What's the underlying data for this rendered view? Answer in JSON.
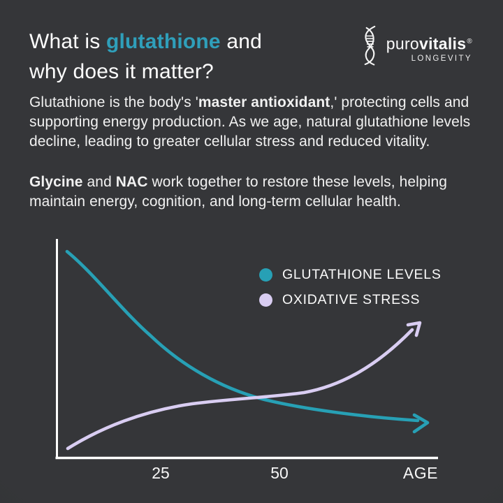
{
  "header": {
    "title_segments": [
      {
        "text": "What is "
      },
      {
        "text": "glutathione",
        "style": "accent"
      },
      {
        "text": " and"
      },
      {
        "br": true
      },
      {
        "text": "why does it matter?"
      }
    ],
    "logo": {
      "brand_light": "puro",
      "brand_bold": "vitalis",
      "registered": "®",
      "tagline": "LONGEVITY"
    }
  },
  "intro": {
    "p1_segments": [
      {
        "text": "Glutathione is the body's '"
      },
      {
        "text": "master antioxidant",
        "style": "bold"
      },
      {
        "text": ",' protecting cells and supporting energy production. As we age, natural glutathione levels decline, leading to greater cellular stress and reduced vitality."
      }
    ],
    "p2_segments": [
      {
        "text": "Glycine",
        "style": "bold"
      },
      {
        "text": " and "
      },
      {
        "text": "NAC",
        "style": "bold"
      },
      {
        "text": " work together to restore these levels, helping maintain energy, cognition, and long-term cellular health."
      }
    ]
  },
  "chart": {
    "legend": [
      {
        "label": "GLUTATHIONE LEVELS",
        "color": "#27a0b5"
      },
      {
        "label": "OXIDATIVE STRESS",
        "color": "#d9cdf2"
      }
    ],
    "x_ticks": [
      "25",
      "50"
    ],
    "x_axis_label": "AGE"
  },
  "chart_data": {
    "type": "line",
    "title": "",
    "xlabel": "AGE",
    "ylabel": "",
    "x_ticks_shown": [
      25,
      50
    ],
    "x": [
      5,
      15,
      25,
      35,
      45,
      55,
      65,
      75
    ],
    "series": [
      {
        "name": "GLUTATHIONE LEVELS",
        "color": "#27a0b5",
        "trend": "declining",
        "values": [
          94,
          76,
          55,
          40,
          29,
          23,
          20,
          18
        ]
      },
      {
        "name": "OXIDATIVE STRESS",
        "color": "#d9cdf2",
        "trend": "rising",
        "values": [
          5,
          16,
          21,
          25,
          28,
          33,
          42,
          58
        ]
      }
    ],
    "ylim": [
      0,
      100
    ],
    "grid": false,
    "legend_position": "top-right inside plot",
    "notes": "Conceptual curves with arrowheads; curves cross near age ~45"
  },
  "colors": {
    "background": "#333437",
    "accent_teal": "#2f9fba",
    "curve_teal": "#27a0b5",
    "curve_lavender": "#d9cdf2",
    "axis": "#ffffff",
    "text": "#f1f1f1"
  }
}
